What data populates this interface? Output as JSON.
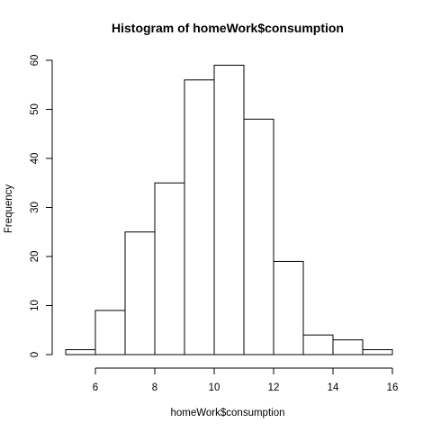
{
  "chart_data": {
    "type": "bar",
    "subtype": "histogram",
    "title": "Histogram of homeWork$consumption",
    "xlabel": "homeWork$consumption",
    "ylabel": "Frequency",
    "bin_edges": [
      5,
      6,
      7,
      8,
      9,
      10,
      11,
      12,
      13,
      14,
      15,
      16
    ],
    "values": [
      1,
      9,
      25,
      35,
      56,
      59,
      48,
      19,
      4,
      3,
      1
    ],
    "xlim": [
      5,
      16
    ],
    "ylim": [
      0,
      60
    ],
    "x_ticks": [
      6,
      8,
      10,
      12,
      14,
      16
    ],
    "y_ticks": [
      0,
      10,
      20,
      30,
      40,
      50,
      60
    ],
    "grid": false,
    "bar_fill": "#ffffff",
    "bar_stroke": "#000000"
  }
}
